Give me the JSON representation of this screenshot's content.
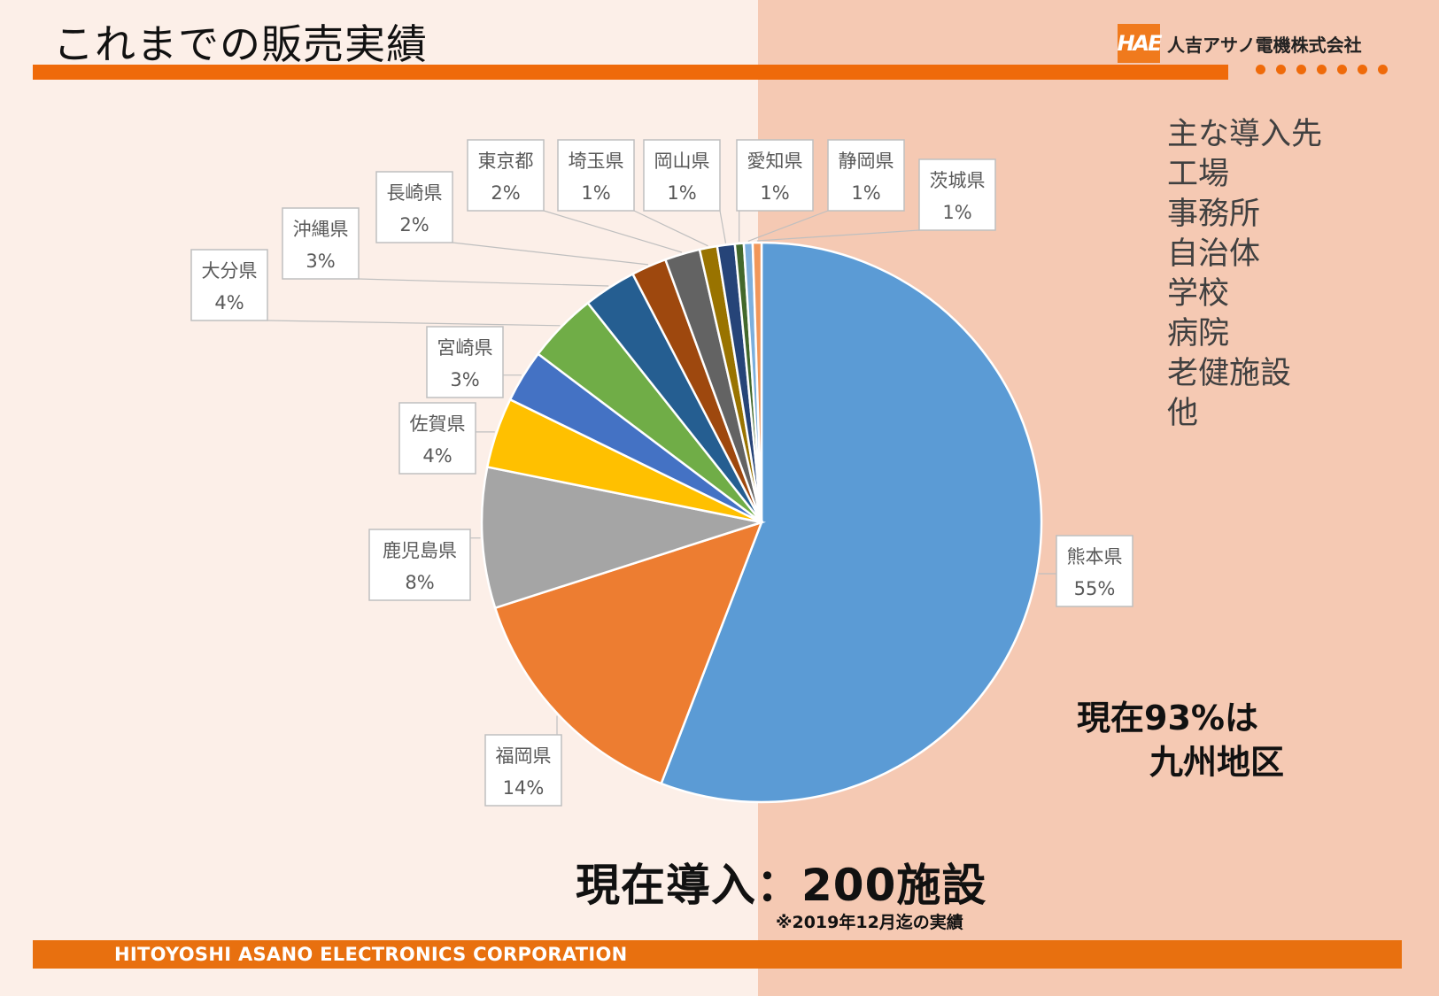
{
  "header": {
    "title": "これまでの販売実績",
    "logo_mark": "HAE",
    "company_name": "人吉アサノ電機株式会社"
  },
  "facilities": {
    "heading": "主な導入先",
    "items": [
      "工場",
      "事務所",
      "自治体",
      "学校",
      "病院",
      "老健施設",
      "他"
    ]
  },
  "callout_kyushu": {
    "line1": "現在93%は",
    "line2": "九州地区"
  },
  "total_label": "現在導入：200施設",
  "note": "※2019年12月迄の実績",
  "footer_text": "HITOYOSHI ASANO ELECTRONICS CORPORATION",
  "chart_data": {
    "type": "pie",
    "title": "",
    "slices": [
      {
        "label": "熊本県",
        "value": 55,
        "display": "55%",
        "color": "#5b9bd5"
      },
      {
        "label": "福岡県",
        "value": 14,
        "display": "14%",
        "color": "#ed7d31"
      },
      {
        "label": "鹿児島県",
        "value": 8,
        "display": "8%",
        "color": "#a5a5a5"
      },
      {
        "label": "佐賀県",
        "value": 4,
        "display": "4%",
        "color": "#ffc000"
      },
      {
        "label": "宮崎県",
        "value": 3,
        "display": "3%",
        "color": "#4472c4"
      },
      {
        "label": "大分県",
        "value": 4,
        "display": "4%",
        "color": "#70ad47"
      },
      {
        "label": "沖縄県",
        "value": 3,
        "display": "3%",
        "color": "#255e91"
      },
      {
        "label": "長崎県",
        "value": 2,
        "display": "2%",
        "color": "#9e480e"
      },
      {
        "label": "東京都",
        "value": 2,
        "display": "2%",
        "color": "#636363"
      },
      {
        "label": "埼玉県",
        "value": 1,
        "display": "1%",
        "color": "#997300"
      },
      {
        "label": "岡山県",
        "value": 1,
        "display": "1%",
        "color": "#264478"
      },
      {
        "label": "愛知県",
        "value": 0.5,
        "display": "1%",
        "color": "#43682b"
      },
      {
        "label": "静岡県",
        "value": 0.5,
        "display": "1%",
        "color": "#7cafdd"
      },
      {
        "label": "茨城県",
        "value": 0.5,
        "display": "1%",
        "color": "#f1975a"
      }
    ],
    "start_angle": "12 o'clock",
    "direction": "clockwise",
    "labels": "callouts with leader lines"
  }
}
